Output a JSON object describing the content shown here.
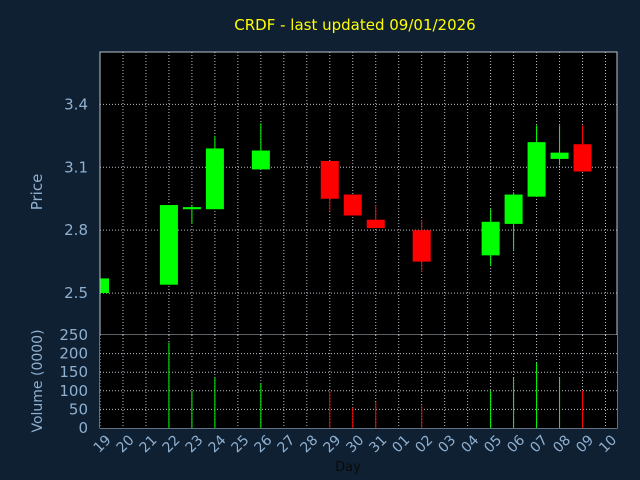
{
  "colors": {
    "background": "#0f2033",
    "plot_bg": "#000000",
    "grid": "#b8c2cc",
    "axis_text": "#8fb0cf",
    "title": "#ffff00",
    "up": "#00ff00",
    "down": "#ff0000"
  },
  "chart_data": {
    "type": "candlestick",
    "title": "CRDF - last updated 09/01/2026",
    "xlabel": "Day",
    "price_panel": {
      "ylabel": "Price",
      "ylim": [
        2.3,
        3.65
      ],
      "yticks": [
        "2.5",
        "2.8",
        "3.1",
        "3.4"
      ],
      "ytick_values": [
        2.5,
        2.8,
        3.1,
        3.4
      ]
    },
    "volume_panel": {
      "ylabel": "Volume (0000)",
      "ylim": [
        0,
        250
      ],
      "yticks": [
        "0",
        "50",
        "100",
        "150",
        "200",
        "250"
      ],
      "ytick_values": [
        0,
        50,
        100,
        150,
        200,
        250
      ]
    },
    "categories": [
      "19",
      "20",
      "21",
      "22",
      "23",
      "24",
      "25",
      "26",
      "27",
      "28",
      "29",
      "30",
      "31",
      "01",
      "02",
      "03",
      "04",
      "05",
      "06",
      "07",
      "08",
      "09",
      "10"
    ],
    "candles": [
      {
        "day": "19",
        "open": 2.5,
        "close": 2.57,
        "high": 2.57,
        "low": 2.5,
        "volume": 0
      },
      {
        "day": "22",
        "open": 2.54,
        "close": 2.92,
        "high": 2.92,
        "low": 2.54,
        "volume": 230
      },
      {
        "day": "23",
        "open": 2.9,
        "close": 2.91,
        "high": 2.92,
        "low": 2.83,
        "volume": 100
      },
      {
        "day": "24",
        "open": 2.9,
        "close": 3.19,
        "high": 3.25,
        "low": 2.9,
        "volume": 135
      },
      {
        "day": "26",
        "open": 3.09,
        "close": 3.18,
        "high": 3.31,
        "low": 3.09,
        "volume": 120
      },
      {
        "day": "29",
        "open": 3.13,
        "close": 2.95,
        "high": 3.13,
        "low": 2.89,
        "volume": 100
      },
      {
        "day": "30",
        "open": 2.97,
        "close": 2.87,
        "high": 2.97,
        "low": 2.87,
        "volume": 55
      },
      {
        "day": "31",
        "open": 2.85,
        "close": 2.81,
        "high": 2.92,
        "low": 2.81,
        "volume": 70
      },
      {
        "day": "02",
        "open": 2.8,
        "close": 2.65,
        "high": 2.85,
        "low": 2.6,
        "volume": 60
      },
      {
        "day": "05",
        "open": 2.68,
        "close": 2.84,
        "high": 2.9,
        "low": 2.63,
        "volume": 100
      },
      {
        "day": "06",
        "open": 2.83,
        "close": 2.97,
        "high": 2.98,
        "low": 2.7,
        "volume": 135
      },
      {
        "day": "07",
        "open": 2.96,
        "close": 3.22,
        "high": 3.3,
        "low": 2.96,
        "volume": 175
      },
      {
        "day": "08",
        "open": 3.14,
        "close": 3.17,
        "high": 3.3,
        "low": 3.11,
        "volume": 135
      },
      {
        "day": "09",
        "open": 3.21,
        "close": 3.08,
        "high": 3.3,
        "low": 3.08,
        "volume": 100
      }
    ]
  }
}
